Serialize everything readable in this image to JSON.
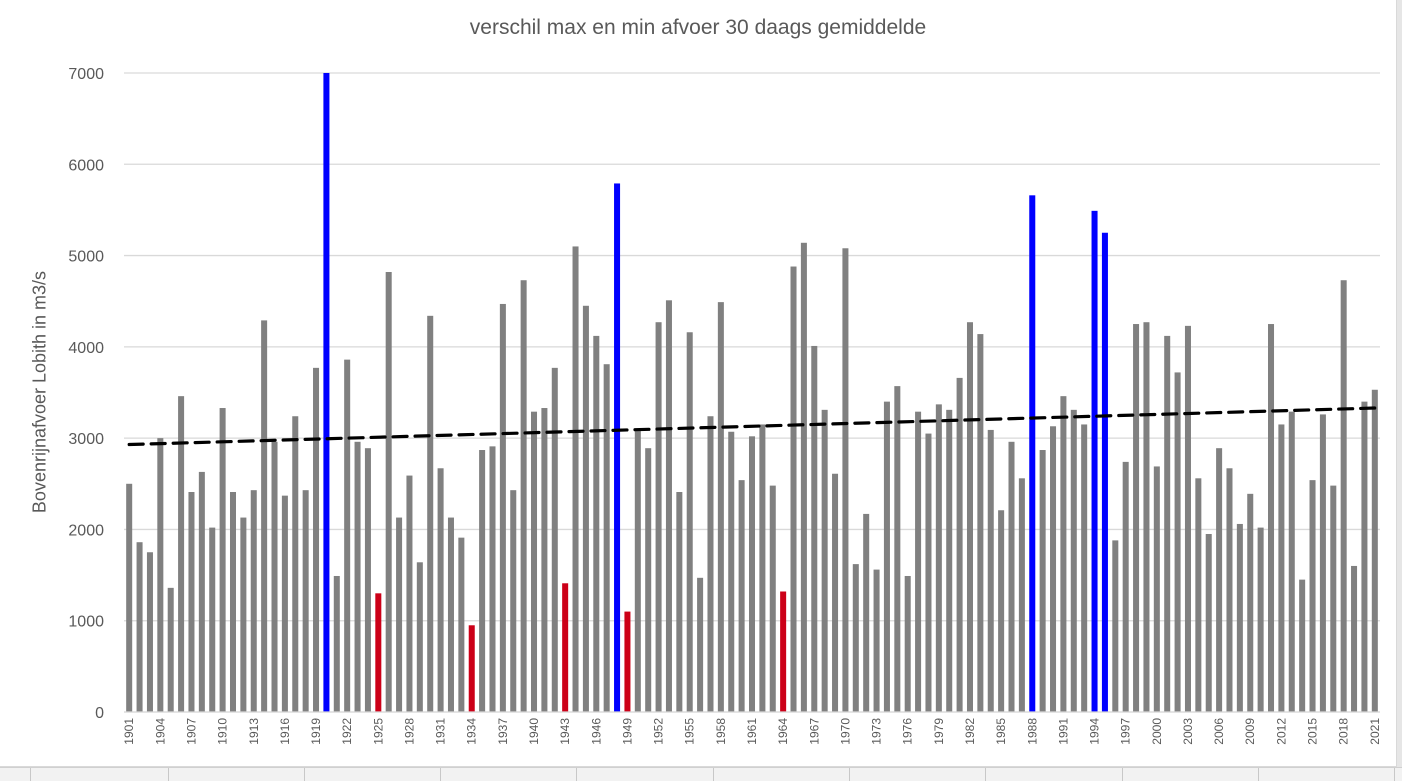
{
  "chart_data": {
    "type": "bar",
    "title": "verschil max en min afvoer 30 daags gemiddelde",
    "xlabel": "",
    "ylabel": "Bovenrijnafvoer Lobith in m3/s",
    "ylim": [
      0,
      7000
    ],
    "yticks": [
      0,
      1000,
      2000,
      3000,
      4000,
      5000,
      6000,
      7000
    ],
    "grid": true,
    "legend": "none",
    "x_tick_labels": [
      "1901",
      "1904",
      "1907",
      "1910",
      "1913",
      "1916",
      "1919",
      "1922",
      "1925",
      "1928",
      "1931",
      "1934",
      "1937",
      "1940",
      "1943",
      "1946",
      "1949",
      "1952",
      "1955",
      "1958",
      "1961",
      "1964",
      "1967",
      "1970",
      "1973",
      "1976",
      "1979",
      "1982",
      "1985",
      "1988",
      "1991",
      "1994",
      "1997",
      "2000",
      "2003",
      "2006",
      "2009",
      "2012",
      "2015",
      "2018",
      "2021"
    ],
    "categories": [
      1901,
      1902,
      1903,
      1904,
      1905,
      1906,
      1907,
      1908,
      1909,
      1910,
      1911,
      1912,
      1913,
      1914,
      1915,
      1916,
      1917,
      1918,
      1919,
      1920,
      1921,
      1922,
      1923,
      1924,
      1925,
      1926,
      1927,
      1928,
      1929,
      1930,
      1931,
      1932,
      1933,
      1934,
      1935,
      1936,
      1937,
      1938,
      1939,
      1940,
      1941,
      1942,
      1943,
      1944,
      1945,
      1946,
      1947,
      1948,
      1949,
      1950,
      1951,
      1952,
      1953,
      1954,
      1955,
      1956,
      1957,
      1958,
      1959,
      1960,
      1961,
      1962,
      1963,
      1964,
      1965,
      1966,
      1967,
      1968,
      1969,
      1970,
      1971,
      1972,
      1973,
      1974,
      1975,
      1976,
      1977,
      1978,
      1979,
      1980,
      1981,
      1982,
      1983,
      1984,
      1985,
      1986,
      1987,
      1988,
      1989,
      1990,
      1991,
      1992,
      1993,
      1994,
      1995,
      1996,
      1997,
      1998,
      1999,
      2000,
      2001,
      2002,
      2003,
      2004,
      2005,
      2006,
      2007,
      2008,
      2009,
      2010,
      2011,
      2012,
      2013,
      2014,
      2015,
      2016,
      2017,
      2018,
      2019,
      2020,
      2021
    ],
    "values": [
      2500,
      1860,
      1750,
      3000,
      1360,
      3460,
      2410,
      2630,
      2020,
      3330,
      2410,
      2130,
      2430,
      4290,
      2960,
      2370,
      3240,
      2430,
      3770,
      7000,
      1490,
      3860,
      2960,
      2890,
      1300,
      4820,
      2130,
      2590,
      1640,
      4340,
      2670,
      2130,
      1910,
      950,
      2870,
      2910,
      4470,
      2430,
      4730,
      3290,
      3330,
      3770,
      1410,
      5100,
      4450,
      4120,
      3810,
      5790,
      1100,
      3090,
      2890,
      4270,
      4510,
      2410,
      4160,
      1470,
      3240,
      4490,
      3070,
      2540,
      3020,
      3150,
      2480,
      1320,
      4880,
      5140,
      4010,
      3310,
      2610,
      5080,
      1620,
      2170,
      1560,
      3400,
      3570,
      1490,
      3290,
      3050,
      3370,
      3310,
      3660,
      4270,
      4140,
      3090,
      2210,
      2960,
      2560,
      5660,
      2870,
      3130,
      3460,
      3310,
      3150,
      5490,
      5250,
      1880,
      2740,
      4250,
      4270,
      2690,
      4120,
      3720,
      4230,
      2560,
      1950,
      2890,
      2670,
      2060,
      2390,
      2020,
      4250,
      3150,
      3290,
      1450,
      2540,
      3260,
      2480,
      4730,
      1600,
      3400,
      3530
    ],
    "highlight_high_years": [
      1920,
      1948,
      1988,
      1994,
      1995
    ],
    "highlight_low_years": [
      1925,
      1934,
      1943,
      1949,
      1964
    ],
    "colors": {
      "default_bar": "#808080",
      "high_bar": "#0000ff",
      "low_bar": "#cc0018",
      "gridline": "#d9d9d9",
      "trendline": "#000000"
    },
    "trendline": {
      "type": "linear",
      "style": "dashed",
      "start": [
        1901,
        2930
      ],
      "end": [
        2021,
        3330
      ]
    }
  }
}
